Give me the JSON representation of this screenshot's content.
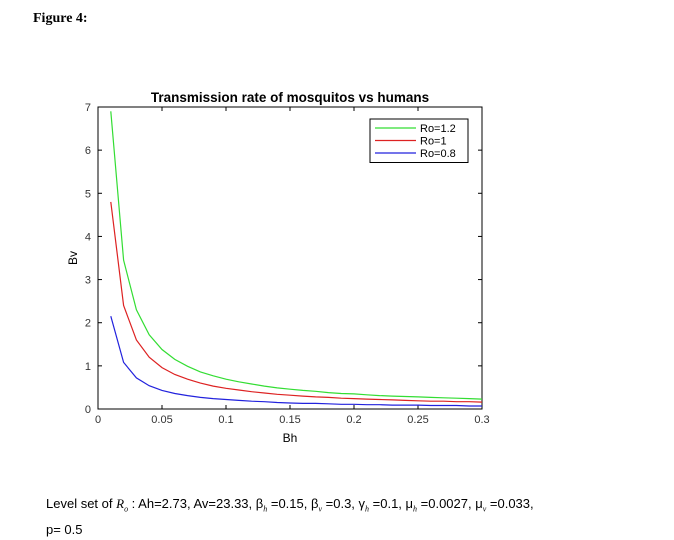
{
  "figure_label": "Figure 4:",
  "chart_data": {
    "type": "line",
    "title": "Transmission rate of mosquitos vs humans",
    "xlabel": "Bh",
    "ylabel": "Bv",
    "xlim": [
      0,
      0.3
    ],
    "ylim": [
      0,
      7
    ],
    "xticks": [
      "0",
      "0.05",
      "0.1",
      "0.15",
      "0.2",
      "0.25",
      "0.3"
    ],
    "yticks": [
      "0",
      "1",
      "2",
      "3",
      "4",
      "5",
      "6",
      "7"
    ],
    "legend_position": "top-right",
    "x": [
      0.01,
      0.02,
      0.03,
      0.04,
      0.05,
      0.06,
      0.07,
      0.08,
      0.09,
      0.1,
      0.11,
      0.12,
      0.13,
      0.14,
      0.15,
      0.16,
      0.17,
      0.18,
      0.19,
      0.2,
      0.21,
      0.22,
      0.23,
      0.24,
      0.25,
      0.26,
      0.27,
      0.28,
      0.29,
      0.3
    ],
    "series": [
      {
        "name": "Ro=1.2",
        "color": "#33dd33",
        "values": [
          6.9,
          3.45,
          2.3,
          1.72,
          1.38,
          1.15,
          0.99,
          0.86,
          0.77,
          0.69,
          0.63,
          0.58,
          0.53,
          0.49,
          0.46,
          0.43,
          0.41,
          0.38,
          0.36,
          0.35,
          0.33,
          0.31,
          0.3,
          0.29,
          0.28,
          0.27,
          0.26,
          0.25,
          0.24,
          0.23
        ]
      },
      {
        "name": "Ro=1",
        "color": "#dd2222",
        "values": [
          4.8,
          2.4,
          1.6,
          1.2,
          0.96,
          0.8,
          0.69,
          0.6,
          0.53,
          0.48,
          0.44,
          0.4,
          0.37,
          0.34,
          0.32,
          0.3,
          0.28,
          0.27,
          0.25,
          0.24,
          0.23,
          0.22,
          0.21,
          0.2,
          0.19,
          0.18,
          0.18,
          0.17,
          0.17,
          0.16
        ]
      },
      {
        "name": "Ro=0.8",
        "color": "#2222dd",
        "values": [
          2.15,
          1.08,
          0.72,
          0.54,
          0.43,
          0.36,
          0.31,
          0.27,
          0.24,
          0.22,
          0.2,
          0.18,
          0.17,
          0.15,
          0.14,
          0.13,
          0.13,
          0.12,
          0.11,
          0.11,
          0.1,
          0.1,
          0.09,
          0.09,
          0.09,
          0.08,
          0.08,
          0.08,
          0.07,
          0.07
        ]
      }
    ]
  },
  "caption": {
    "prefix": "Level set of ",
    "symbol": "R",
    "symbol_sub": "o",
    "p1": " : Ah=2.73,  Av=23.33,  β",
    "s1": "h",
    "p2": " =0.15,  β",
    "s2": "v",
    "p3": " =0.3,  γ",
    "s3": "h",
    "p4": " =0.1,  μ",
    "s4": "h",
    "p5": " =0.0027,  μ",
    "s5": "v",
    "p6": " =0.033,",
    "line2": "p= 0.5"
  }
}
